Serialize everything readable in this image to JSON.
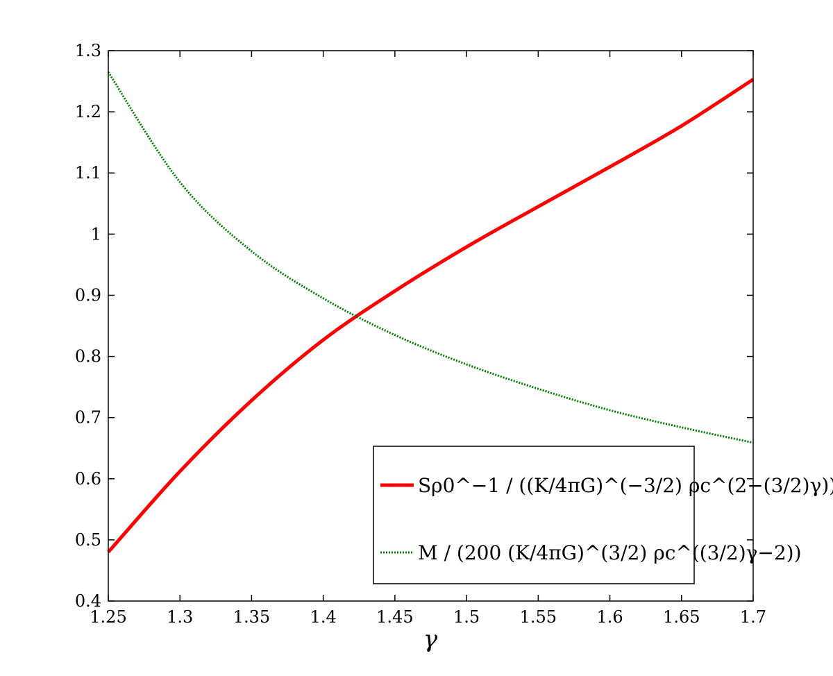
{
  "chart_data": {
    "type": "line",
    "xlabel": "γ",
    "ylabel": "",
    "xlim": [
      1.25,
      1.7
    ],
    "ylim": [
      0.4,
      1.3
    ],
    "xticks": [
      "1.25",
      "1.3",
      "1.35",
      "1.4",
      "1.45",
      "1.5",
      "1.55",
      "1.6",
      "1.65",
      "1.7"
    ],
    "yticks": [
      "0.4",
      "0.5",
      "0.6",
      "0.7",
      "0.8",
      "0.9",
      "1",
      "1.1",
      "1.2",
      "1.3"
    ],
    "grid": false,
    "legend_position": "bottom-right",
    "series": [
      {
        "name": "Sρ0^−1 / ((K/4πG)^(−3/2) ρc^(2−(3/2)γ))",
        "color": "#ff0000",
        "style": "solid",
        "x": [
          1.25,
          1.3,
          1.35,
          1.4,
          1.45,
          1.5,
          1.55,
          1.6,
          1.65,
          1.7
        ],
        "y": [
          0.48,
          0.612,
          0.728,
          0.827,
          0.907,
          0.979,
          1.045,
          1.11,
          1.177,
          1.253
        ]
      },
      {
        "name": "M / (200 (K/4πG)^(3/2) ρc^((3/2)γ−2))",
        "color": "#007f00",
        "style": "dotted",
        "x": [
          1.25,
          1.3,
          1.35,
          1.4,
          1.45,
          1.5,
          1.55,
          1.6,
          1.65,
          1.7
        ],
        "y": [
          1.265,
          1.085,
          0.972,
          0.895,
          0.835,
          0.787,
          0.747,
          0.712,
          0.684,
          0.659
        ]
      }
    ]
  }
}
